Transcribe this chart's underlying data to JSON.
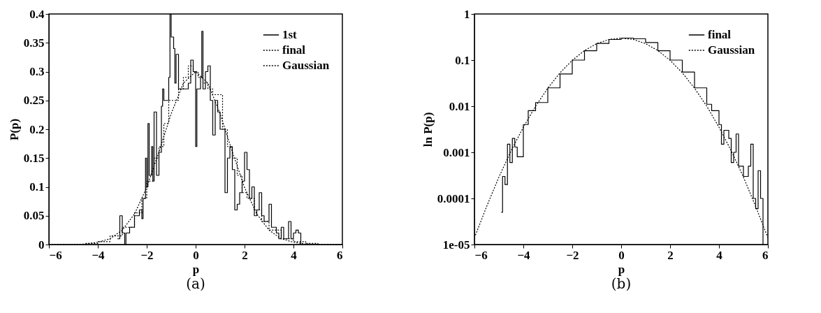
{
  "chart_data": [
    {
      "type": "step",
      "xlabel": "p",
      "ylabel": "P(p)",
      "annotations": [
        "(a)"
      ],
      "xlim": [
        -6,
        6
      ],
      "xticks": [
        -6,
        -4,
        -2,
        0,
        2,
        4,
        6
      ],
      "ylim": [
        0,
        0.4
      ],
      "yticks": [
        0,
        0.05,
        0.1,
        0.15,
        0.2,
        0.25,
        0.3,
        0.35,
        0.4
      ],
      "grid": false,
      "legend": "top right",
      "series": [
        {
          "name": "1st",
          "color": "#000000",
          "line_style": "solid",
          "x": [
            -3.2,
            -3.1,
            -3.0,
            -2.9,
            -2.85,
            -2.7,
            -2.5,
            -2.3,
            -2.2,
            -2.15,
            -2.05,
            -2.0,
            -1.95,
            -1.9,
            -1.8,
            -1.75,
            -1.7,
            -1.6,
            -1.5,
            -1.4,
            -1.35,
            -1.3,
            -1.1,
            -1.05,
            -1.0,
            -0.9,
            -0.85,
            -0.8,
            -0.7,
            -0.6,
            -0.5,
            -0.3,
            -0.2,
            -0.1,
            0.0,
            0.05,
            0.2,
            0.25,
            0.3,
            0.4,
            0.5,
            0.6,
            0.7,
            0.8,
            0.9,
            1.0,
            1.1,
            1.2,
            1.3,
            1.4,
            1.5,
            1.6,
            1.7,
            1.8,
            1.9,
            2.0,
            2.1,
            2.2,
            2.3,
            2.4,
            2.5,
            2.6,
            2.7,
            2.8,
            3.0,
            3.1,
            3.3,
            3.4,
            3.5,
            3.6,
            3.8,
            3.9,
            4.0,
            4.1,
            4.2,
            4.3
          ],
          "values": [
            0.01,
            0.05,
            0.02,
            0.0,
            0.02,
            0.03,
            0.05,
            0.06,
            0.045,
            0.08,
            0.15,
            0.1,
            0.21,
            0.12,
            0.17,
            0.11,
            0.23,
            0.12,
            0.16,
            0.24,
            0.27,
            0.25,
            0.29,
            0.4,
            0.36,
            0.34,
            0.28,
            0.33,
            0.27,
            0.27,
            0.27,
            0.28,
            0.32,
            0.3,
            0.17,
            0.27,
            0.29,
            0.37,
            0.27,
            0.3,
            0.31,
            0.25,
            0.19,
            0.25,
            0.23,
            0.2,
            0.2,
            0.09,
            0.15,
            0.17,
            0.13,
            0.06,
            0.07,
            0.09,
            0.11,
            0.16,
            0.13,
            0.08,
            0.1,
            0.05,
            0.06,
            0.09,
            0.05,
            0.04,
            0.07,
            0.03,
            0.02,
            0.01,
            0.03,
            0.01,
            0.04,
            0.01,
            0.02,
            0.025,
            0.02,
            0.0
          ]
        },
        {
          "name": "final",
          "color": "#000000",
          "line_style": "dotted",
          "x": [
            -4.5,
            -4.0,
            -3.5,
            -3.0,
            -2.5,
            -2.2,
            -2.0,
            -1.7,
            -1.5,
            -1.3,
            -1.1,
            -0.9,
            -0.7,
            -0.5,
            -0.3,
            -0.1,
            0.1,
            0.3,
            0.5,
            0.7,
            0.9,
            1.1,
            1.3,
            1.5,
            1.7,
            1.9,
            2.1,
            2.4,
            2.7,
            3.0,
            3.5,
            4.0,
            4.5,
            5.0
          ],
          "values": [
            0.002,
            0.005,
            0.015,
            0.03,
            0.055,
            0.08,
            0.11,
            0.15,
            0.17,
            0.21,
            0.25,
            0.25,
            0.27,
            0.29,
            0.31,
            0.3,
            0.29,
            0.28,
            0.27,
            0.26,
            0.26,
            0.2,
            0.17,
            0.15,
            0.12,
            0.09,
            0.08,
            0.06,
            0.04,
            0.025,
            0.01,
            0.005,
            0.002,
            0.0
          ]
        },
        {
          "name": "Gaussian",
          "type": "line",
          "color": "#000000",
          "line_style": "dotted",
          "x": [
            -6,
            -5.5,
            -5,
            -4.5,
            -4,
            -3.5,
            -3,
            -2.5,
            -2,
            -1.5,
            -1,
            -0.5,
            0,
            0.5,
            1,
            1.5,
            2,
            2.5,
            3,
            3.5,
            4,
            4.5,
            5,
            5.5,
            6
          ],
          "values": [
            0.0,
            0.0,
            0.0,
            0.001,
            0.004,
            0.01,
            0.025,
            0.053,
            0.099,
            0.161,
            0.227,
            0.28,
            0.3,
            0.28,
            0.227,
            0.161,
            0.099,
            0.053,
            0.025,
            0.01,
            0.004,
            0.001,
            0.0,
            0.0,
            0.0
          ]
        }
      ]
    },
    {
      "type": "step",
      "xlabel": "p",
      "ylabel": "ln P(p)",
      "annotations": [
        "(b)"
      ],
      "log": "y",
      "xlim": [
        -6,
        6
      ],
      "xticks": [
        -6,
        -4,
        -2,
        0,
        2,
        4,
        6
      ],
      "ylim": [
        1e-05,
        1
      ],
      "yticks": [
        {
          "value": 1e-05,
          "label": "1e-05"
        },
        0.0001,
        0.001,
        0.01,
        0.1,
        1
      ],
      "grid": false,
      "legend": "top right",
      "series": [
        {
          "name": "final",
          "color": "#000000",
          "line_style": "solid",
          "x": [
            -4.9,
            -4.85,
            -4.75,
            -4.65,
            -4.55,
            -4.45,
            -4.35,
            -4.25,
            -4.0,
            -3.8,
            -3.5,
            -3.0,
            -2.5,
            -2.0,
            -1.5,
            -1.0,
            -0.5,
            0,
            0.5,
            1.0,
            1.5,
            2.0,
            2.5,
            3.0,
            3.5,
            3.7,
            4.0,
            4.1,
            4.2,
            4.4,
            4.5,
            4.6,
            4.7,
            4.8,
            5.0,
            5.2,
            5.3,
            5.4,
            5.5,
            5.6,
            5.7,
            5.8
          ],
          "values": [
            5e-05,
            0.0003,
            0.0002,
            0.0015,
            0.0006,
            0.002,
            0.0013,
            0.0008,
            0.004,
            0.008,
            0.012,
            0.025,
            0.05,
            0.1,
            0.16,
            0.23,
            0.28,
            0.3,
            0.29,
            0.24,
            0.16,
            0.1,
            0.055,
            0.025,
            0.011,
            0.008,
            0.004,
            0.0015,
            0.003,
            0.002,
            0.0006,
            0.001,
            0.0025,
            0.0005,
            0.0003,
            0.0005,
            0.0015,
            0.0001,
            6e-05,
            0.0004,
            0.0001,
            1e-05
          ]
        },
        {
          "name": "Gaussian",
          "type": "line",
          "color": "#000000",
          "line_style": "dotted",
          "x": [
            -6,
            -5.5,
            -5,
            -4.5,
            -4,
            -3.5,
            -3,
            -2.5,
            -2,
            -1.5,
            -1,
            -0.5,
            0,
            0.5,
            1,
            1.5,
            2,
            2.5,
            3,
            3.5,
            4,
            4.5,
            5,
            5.5,
            6
          ],
          "values": [
            1.4e-05,
            6.7e-05,
            0.00029,
            0.00108,
            0.0035,
            0.01,
            0.0246,
            0.053,
            0.099,
            0.161,
            0.227,
            0.28,
            0.3,
            0.28,
            0.227,
            0.161,
            0.099,
            0.053,
            0.0246,
            0.01,
            0.0035,
            0.00108,
            0.00029,
            6.7e-05,
            1.4e-05
          ]
        }
      ]
    }
  ]
}
